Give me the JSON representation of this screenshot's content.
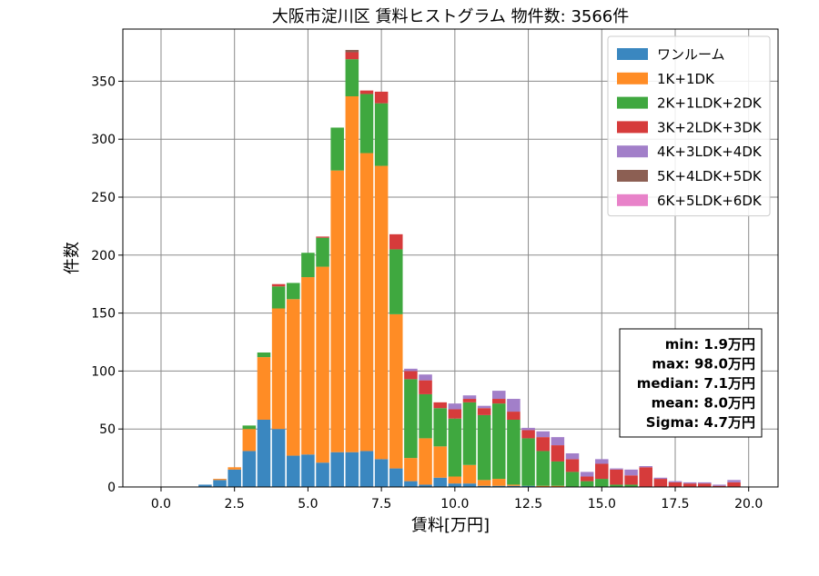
{
  "chart_data": {
    "type": "bar",
    "stacked": true,
    "title": "大阪市淀川区 賃料ヒストグラム  物件数: 3566件",
    "xlabel": "賃料[万円]",
    "ylabel": "件数",
    "xlim": [
      -1.3,
      21.0
    ],
    "ylim": [
      0,
      395
    ],
    "xticks": [
      "0.0",
      "2.5",
      "5.0",
      "7.5",
      "10.0",
      "12.5",
      "15.0",
      "17.5",
      "20.0"
    ],
    "xtick_values": [
      0,
      2.5,
      5,
      7.5,
      10,
      12.5,
      15,
      17.5,
      20
    ],
    "yticks": [
      "0",
      "50",
      "100",
      "150",
      "200",
      "250",
      "300",
      "350"
    ],
    "ytick_values": [
      0,
      50,
      100,
      150,
      200,
      250,
      300,
      350
    ],
    "grid": true,
    "legend_position": "top-right",
    "bin_width": 0.5,
    "x": [
      1.5,
      2.0,
      2.5,
      3.0,
      3.5,
      4.0,
      4.5,
      5.0,
      5.5,
      6.0,
      6.5,
      7.0,
      7.5,
      8.0,
      8.5,
      9.0,
      9.5,
      10.0,
      10.5,
      11.0,
      11.5,
      12.0,
      12.5,
      13.0,
      13.5,
      14.0,
      14.5,
      15.0,
      15.5,
      16.0,
      16.5,
      17.0,
      17.5,
      18.0,
      18.5,
      19.0,
      19.5
    ],
    "series": [
      {
        "name": "ワンルーム",
        "color": "#3a87c0",
        "values": [
          2,
          6,
          15,
          31,
          58,
          50,
          27,
          28,
          21,
          30,
          30,
          31,
          24,
          16,
          5,
          2,
          8,
          3,
          3,
          1,
          1,
          1,
          1,
          0,
          0,
          0,
          0,
          0,
          0,
          0,
          0,
          0,
          0,
          0,
          0,
          0,
          0
        ]
      },
      {
        "name": "1K+1DK",
        "color": "#ff8c25",
        "values": [
          0,
          1,
          2,
          19,
          54,
          104,
          135,
          153,
          169,
          243,
          307,
          257,
          253,
          133,
          20,
          40,
          27,
          6,
          16,
          5,
          6,
          1,
          0,
          1,
          1,
          0,
          0,
          0,
          0,
          0,
          0,
          0,
          0,
          0,
          0,
          0,
          0
        ]
      },
      {
        "name": "2K+1LDK+2DK",
        "color": "#3fa83f",
        "values": [
          0,
          0,
          0,
          3,
          4,
          19,
          14,
          21,
          25,
          37,
          32,
          51,
          54,
          56,
          68,
          38,
          33,
          50,
          54,
          56,
          65,
          56,
          41,
          30,
          21,
          13,
          5,
          7,
          2,
          2,
          0,
          0,
          0,
          0,
          0,
          0,
          0
        ]
      },
      {
        "name": "3K+2LDK+3DK",
        "color": "#d63b3b",
        "values": [
          0,
          0,
          0,
          0,
          0,
          2,
          0,
          0,
          1,
          0,
          6,
          3,
          10,
          13,
          7,
          12,
          5,
          8,
          3,
          6,
          4,
          7,
          7,
          12,
          14,
          11,
          4,
          13,
          13,
          8,
          17,
          7,
          4,
          3,
          3,
          1,
          4
        ]
      },
      {
        "name": "4K+3LDK+4DK",
        "color": "#a27fc9",
        "values": [
          0,
          0,
          0,
          0,
          0,
          0,
          0,
          0,
          0,
          0,
          0,
          0,
          0,
          0,
          2,
          5,
          0,
          5,
          3,
          2,
          7,
          11,
          2,
          5,
          7,
          5,
          4,
          4,
          1,
          5,
          1,
          1,
          1,
          1,
          1,
          1,
          2
        ]
      },
      {
        "name": "5K+4LDK+5DK",
        "color": "#8c5f53",
        "values": [
          0,
          0,
          0,
          0,
          0,
          0,
          0,
          0,
          0,
          0,
          2,
          0,
          0,
          0,
          0,
          0,
          0,
          0,
          0,
          0,
          0,
          0,
          0,
          0,
          0,
          0,
          0,
          0,
          0,
          0,
          0,
          0,
          0,
          0,
          0,
          0,
          0
        ]
      },
      {
        "name": "6K+5LDK+6DK",
        "color": "#e882c9",
        "values": [
          0,
          0,
          0,
          0,
          0,
          0,
          0,
          0,
          0,
          0,
          0,
          0,
          0,
          0,
          0,
          0,
          0,
          0,
          0,
          0,
          0,
          0,
          0,
          0,
          0,
          0,
          0,
          0,
          0,
          0,
          0,
          0,
          0,
          0,
          0,
          0,
          0
        ]
      }
    ],
    "annotation": [
      "min: 1.9万円",
      "max: 98.0万円",
      "median: 7.1万円",
      "mean: 8.0万円",
      "Sigma: 4.7万円"
    ]
  }
}
